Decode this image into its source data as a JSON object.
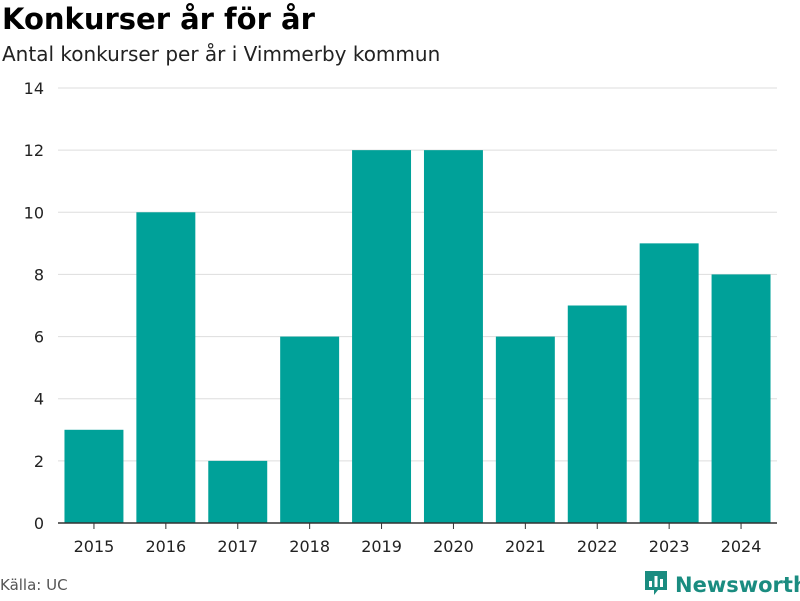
{
  "header": {
    "title": "Konkurser år för år",
    "subtitle": "Antal konkurser per år i Vimmerby kommun"
  },
  "footer": {
    "source": "Källa: UC",
    "brand": "Newsworthy"
  },
  "colors": {
    "bar": "#00a199",
    "grid": "#dddddd",
    "axis": "#333333",
    "brand": "#1a8c80"
  },
  "icons": {
    "brand_logo": "bar-chart-speech-bubble-icon"
  },
  "chart_data": {
    "type": "bar",
    "categories": [
      "2015",
      "2016",
      "2017",
      "2018",
      "2019",
      "2020",
      "2021",
      "2022",
      "2023",
      "2024"
    ],
    "values": [
      3,
      10,
      2,
      6,
      12,
      12,
      6,
      7,
      9,
      8
    ],
    "title": "Konkurser år för år",
    "subtitle": "Antal konkurser per år i Vimmerby kommun",
    "xlabel": "",
    "ylabel": "",
    "ylim": [
      0,
      14
    ],
    "yticks": [
      "0",
      "2",
      "4",
      "6",
      "8",
      "10",
      "12",
      "14"
    ],
    "grid": true,
    "legend": "none"
  }
}
